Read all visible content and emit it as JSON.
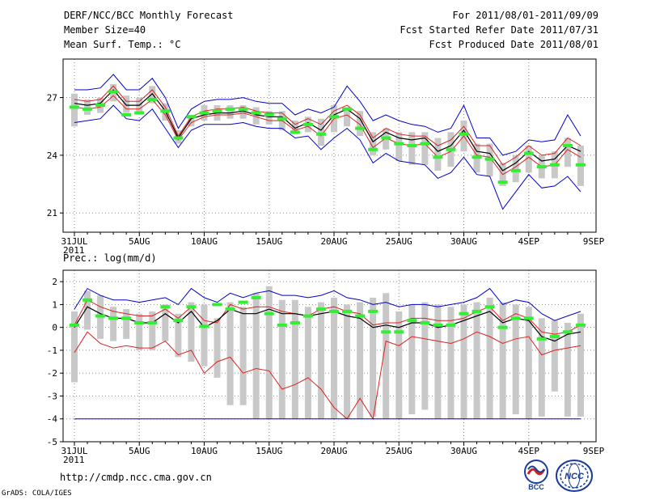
{
  "header": {
    "title": "DERF/NCC/BCC Monthly Forecast",
    "member_size": "Member Size=40",
    "variable": "Mean Surf. Temp.: °C",
    "period": "For 2011/08/01-2011/09/09",
    "fcst_start": "Fcst Started Refer Date 2011/07/31",
    "fcst_produced": "Fcst Produced Date 2011/08/01"
  },
  "footer": {
    "url": "http://cmdp.ncc.cma.gov.cn",
    "grads": "GrADS: COLA/IGES",
    "logo_bcc": "BCC",
    "logo_ncc": "NCC"
  },
  "colors": {
    "envelope": "#0000cc",
    "spread": "#dd2222",
    "mean": "#000000",
    "box": "#c8c8c8",
    "median": "#33ee33",
    "grid": "#888888"
  },
  "chart_data": [
    {
      "type": "line",
      "name": "temperature",
      "title": "Mean Surf. Temp.: °C",
      "xlabel": "",
      "ylabel": "°C",
      "ylim": [
        20,
        29
      ],
      "yticks": [
        21,
        24,
        27
      ],
      "x_tick_labels": [
        "31JUL\n2011",
        "5AUG",
        "10AUG",
        "15AUG",
        "20AUG",
        "25AUG",
        "30AUG",
        "4SEP",
        "9SEP"
      ],
      "days": 40,
      "series": [
        {
          "name": "max",
          "color": "#0000cc",
          "values": [
            27.4,
            27.4,
            27.5,
            28.2,
            27.4,
            27.4,
            28.0,
            27.0,
            25.4,
            26.4,
            26.8,
            26.9,
            26.9,
            27.0,
            26.8,
            26.7,
            26.7,
            26.1,
            26.4,
            26.2,
            26.5,
            27.6,
            26.8,
            25.8,
            26.1,
            25.8,
            25.6,
            25.5,
            25.2,
            25.4,
            26.6,
            24.9,
            24.9,
            24.0,
            24.2,
            24.8,
            24.7,
            24.8,
            26.1,
            25.0
          ]
        },
        {
          "name": "upper",
          "color": "#dd2222",
          "values": [
            26.9,
            26.8,
            26.9,
            27.6,
            26.8,
            26.8,
            27.4,
            26.5,
            25.0,
            26.0,
            26.3,
            26.4,
            26.4,
            26.5,
            26.3,
            26.2,
            26.2,
            25.6,
            25.9,
            25.6,
            26.3,
            26.6,
            26.1,
            24.9,
            25.4,
            25.1,
            25.0,
            25.0,
            24.5,
            24.8,
            25.5,
            24.5,
            24.5,
            23.5,
            23.9,
            24.5,
            24.0,
            24.1,
            24.9,
            24.5
          ]
        },
        {
          "name": "mean",
          "color": "#000000",
          "values": [
            26.7,
            26.6,
            26.7,
            27.4,
            26.6,
            26.6,
            27.2,
            26.3,
            24.9,
            25.9,
            26.1,
            26.2,
            26.2,
            26.3,
            26.1,
            26.0,
            26.0,
            25.4,
            25.7,
            25.3,
            26.1,
            26.4,
            25.9,
            24.7,
            25.2,
            24.9,
            24.8,
            24.9,
            24.2,
            24.5,
            25.3,
            24.2,
            24.1,
            23.2,
            23.6,
            24.2,
            23.7,
            23.8,
            24.5,
            24.2
          ]
        },
        {
          "name": "lower",
          "color": "#dd2222",
          "values": [
            26.5,
            26.4,
            26.5,
            27.1,
            26.4,
            26.4,
            26.9,
            26.1,
            24.8,
            25.7,
            26.0,
            26.1,
            26.1,
            26.2,
            26.0,
            25.8,
            25.8,
            25.3,
            25.5,
            25.0,
            25.9,
            26.1,
            25.6,
            24.4,
            24.9,
            24.6,
            24.5,
            24.6,
            23.9,
            24.2,
            25.0,
            24.0,
            23.9,
            23.0,
            23.4,
            23.9,
            23.4,
            23.5,
            24.3,
            23.9
          ]
        },
        {
          "name": "min",
          "color": "#0000cc",
          "values": [
            25.7,
            25.8,
            25.9,
            26.6,
            25.9,
            25.8,
            26.4,
            25.4,
            24.4,
            25.3,
            25.6,
            25.6,
            25.6,
            25.7,
            25.5,
            25.4,
            25.4,
            24.9,
            25.0,
            24.3,
            24.9,
            25.4,
            24.8,
            23.6,
            24.1,
            23.7,
            23.6,
            23.5,
            22.8,
            23.1,
            23.9,
            23.0,
            22.9,
            21.2,
            22.1,
            23.0,
            22.3,
            22.4,
            22.9,
            22.1
          ]
        }
      ],
      "boxes": {
        "top": [
          27.2,
          26.9,
          27.0,
          27.7,
          27.1,
          27.0,
          27.6,
          26.7,
          25.3,
          26.1,
          26.6,
          26.6,
          26.6,
          26.6,
          26.5,
          26.3,
          26.3,
          25.8,
          26.0,
          25.9,
          26.6,
          26.5,
          26.3,
          25.2,
          25.4,
          25.2,
          25.2,
          25.2,
          24.9,
          25.2,
          25.8,
          24.6,
          24.6,
          23.6,
          24.0,
          24.5,
          24.0,
          24.2,
          24.9,
          24.5
        ],
        "bottom": [
          25.5,
          26.1,
          26.2,
          26.8,
          26.2,
          26.2,
          26.7,
          25.8,
          24.6,
          25.5,
          25.8,
          25.8,
          25.9,
          25.9,
          25.6,
          25.6,
          25.3,
          25.1,
          25.2,
          24.5,
          25.2,
          25.5,
          25.0,
          24.0,
          24.3,
          23.7,
          23.5,
          23.5,
          23.2,
          23.4,
          24.2,
          23.1,
          22.9,
          22.4,
          22.6,
          23.1,
          22.8,
          22.8,
          23.4,
          22.4
        ],
        "median": [
          26.5,
          26.4,
          26.6,
          27.3,
          26.1,
          26.2,
          26.9,
          26.3,
          24.9,
          26.0,
          26.2,
          26.3,
          26.4,
          26.4,
          26.2,
          26.1,
          25.9,
          25.2,
          25.6,
          25.1,
          26.0,
          26.4,
          25.4,
          24.3,
          24.9,
          24.6,
          24.5,
          24.6,
          23.9,
          24.3,
          25.1,
          23.9,
          23.8,
          22.6,
          23.2,
          24.1,
          23.4,
          23.5,
          24.5,
          23.5
        ]
      }
    },
    {
      "type": "line",
      "name": "precipitation",
      "title": "Prec.: log(mm/d)",
      "xlabel": "",
      "ylabel": "log(mm/d)",
      "ylim": [
        -5,
        2.5
      ],
      "yticks": [
        2,
        1,
        0,
        -1,
        -2,
        -3,
        -4,
        -5
      ],
      "x_tick_labels": [
        "31JUL\n2011",
        "5AUG",
        "10AUG",
        "15AUG",
        "20AUG",
        "25AUG",
        "30AUG",
        "4SEP",
        "9SEP"
      ],
      "days": 40,
      "series": [
        {
          "name": "max",
          "color": "#0000cc",
          "values": [
            0.8,
            1.7,
            1.4,
            1.2,
            1.2,
            1.1,
            1.2,
            1.3,
            1.0,
            1.7,
            1.3,
            1.1,
            1.5,
            1.3,
            1.5,
            1.6,
            1.4,
            1.4,
            1.3,
            1.4,
            1.6,
            1.3,
            1.2,
            1.0,
            1.1,
            0.9,
            1.0,
            1.0,
            0.9,
            1.0,
            1.1,
            1.3,
            1.7,
            1.0,
            1.2,
            1.1,
            0.6,
            0.3,
            0.5,
            0.7
          ]
        },
        {
          "name": "upper",
          "color": "#dd2222",
          "values": [
            0.1,
            1.2,
            0.9,
            0.7,
            0.6,
            0.5,
            0.5,
            0.8,
            0.4,
            0.9,
            0.3,
            0.2,
            1.0,
            0.8,
            0.9,
            0.9,
            0.7,
            0.6,
            0.5,
            0.8,
            0.9,
            0.7,
            0.6,
            0.1,
            0.2,
            0.2,
            0.4,
            0.4,
            0.3,
            0.3,
            0.4,
            0.7,
            0.9,
            0.3,
            0.6,
            0.4,
            -0.2,
            -0.3,
            -0.2,
            0.1
          ]
        },
        {
          "name": "mean",
          "color": "#000000",
          "values": [
            0.0,
            0.9,
            0.6,
            0.4,
            0.4,
            0.2,
            0.2,
            0.6,
            0.2,
            0.7,
            0.0,
            0.3,
            0.8,
            0.6,
            0.6,
            0.8,
            0.6,
            0.6,
            0.5,
            0.6,
            0.7,
            0.5,
            0.4,
            0.0,
            0.1,
            0.0,
            0.2,
            0.2,
            0.0,
            0.1,
            0.3,
            0.5,
            0.7,
            0.2,
            0.4,
            0.3,
            -0.4,
            -0.6,
            -0.3,
            -0.2
          ]
        },
        {
          "name": "lower",
          "color": "#dd2222",
          "values": [
            -1.1,
            -0.2,
            -0.7,
            -0.9,
            -0.8,
            -0.9,
            -0.9,
            -0.6,
            -1.2,
            -1.0,
            -2.0,
            -1.5,
            -1.3,
            -2.0,
            -1.8,
            -1.9,
            -2.7,
            -2.5,
            -2.2,
            -2.7,
            -3.5,
            -4.0,
            -3.1,
            -4.0,
            -0.6,
            -0.8,
            -0.4,
            -0.5,
            -0.6,
            -0.7,
            -0.5,
            -0.2,
            -0.4,
            -0.7,
            -0.5,
            -0.4,
            -1.2,
            -1.0,
            -0.9,
            -0.8
          ]
        },
        {
          "name": "min",
          "color": "#0000cc",
          "values": [
            -4,
            -4,
            -4,
            -4,
            -4,
            -4,
            -4,
            -4,
            -4,
            -4,
            -4,
            -4,
            -4,
            -4,
            -4,
            -4,
            -4,
            -4,
            -4,
            -4,
            -4,
            -4,
            -4,
            -4,
            -4,
            -4,
            -4,
            -4,
            -4,
            -4,
            -4,
            -4,
            -4,
            -4,
            -4,
            -4,
            -4,
            -4,
            -4,
            -4
          ]
        }
      ],
      "boxes": {
        "top": [
          0.7,
          1.6,
          1.4,
          0.9,
          0.8,
          0.6,
          0.7,
          1.0,
          0.6,
          1.1,
          1.0,
          0.4,
          1.1,
          0.9,
          1.5,
          1.8,
          1.2,
          1.2,
          0.9,
          1.1,
          1.3,
          1.0,
          1.1,
          1.3,
          1.5,
          0.7,
          1.0,
          1.1,
          1.0,
          0.9,
          1.0,
          1.1,
          1.3,
          1.1,
          1.0,
          0.9,
          0.4,
          0.3,
          0.2,
          0.6
        ],
        "bottom": [
          -2.4,
          -0.1,
          -0.5,
          -0.6,
          -0.5,
          -1.0,
          -1.0,
          -0.6,
          -1.3,
          -1.5,
          -1.7,
          -2.2,
          -3.4,
          -3.4,
          -4.0,
          -4.0,
          -4.0,
          -4.0,
          -4.0,
          -4.0,
          -4.0,
          -4.0,
          -4.0,
          -3.9,
          -4.0,
          -4.0,
          -3.8,
          -3.6,
          -4.0,
          -4.0,
          -4.0,
          -4.0,
          -4.0,
          -4.0,
          -3.8,
          -4.0,
          -3.9,
          -2.8,
          -3.9,
          -3.9
        ],
        "median": [
          0.1,
          1.2,
          0.5,
          0.4,
          0.4,
          0.2,
          0.2,
          0.9,
          0.3,
          0.9,
          0.05,
          1.0,
          0.8,
          1.1,
          1.3,
          0.6,
          0.1,
          0.2,
          0.5,
          0.8,
          0.7,
          0.7,
          0.5,
          0.7,
          -0.2,
          -0.2,
          0.3,
          0.2,
          0.1,
          0.1,
          0.6,
          0.7,
          0.9,
          0.0,
          0.4,
          0.4,
          -0.5,
          -0.4,
          -0.2,
          0.1
        ]
      }
    }
  ]
}
